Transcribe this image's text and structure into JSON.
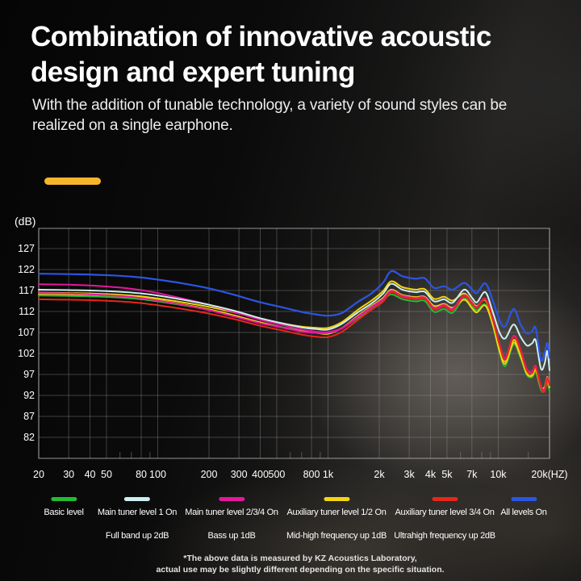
{
  "header": {
    "title_line1": "Combination of innovative acoustic",
    "title_line2": "design and expert tuning",
    "subtitle_line1": "With the addition of tunable technology, a variety of sound styles can be",
    "subtitle_line2": "realized on a single earphone.",
    "accent_color": "#f6b52c"
  },
  "footer": {
    "line1": "*The above data is measured by KZ Acoustics Laboratory,",
    "line2": "actual use may be slightly different depending on the specific situation."
  },
  "chart_data": {
    "type": "line",
    "x_scale": "log",
    "y_unit_label": "(dB)",
    "ylim": [
      77,
      131.8
    ],
    "xlim": [
      20,
      20000
    ],
    "grid": true,
    "y_ticks": [
      127,
      122,
      117,
      112,
      107,
      102,
      97,
      92,
      87,
      82
    ],
    "x_ticks": [
      {
        "f": 20,
        "label": "20"
      },
      {
        "f": 30,
        "label": "30"
      },
      {
        "f": 40,
        "label": "40"
      },
      {
        "f": 50,
        "label": "50"
      },
      {
        "f": 80,
        "label": "80"
      },
      {
        "f": 100,
        "label": "100"
      },
      {
        "f": 200,
        "label": "200"
      },
      {
        "f": 300,
        "label": "300"
      },
      {
        "f": 400,
        "label": "400"
      },
      {
        "f": 500,
        "label": "500"
      },
      {
        "f": 800,
        "label": "800"
      },
      {
        "f": 1000,
        "label": "1k"
      },
      {
        "f": 2000,
        "label": "2k"
      },
      {
        "f": 3000,
        "label": "3k"
      },
      {
        "f": 4000,
        "label": "4k"
      },
      {
        "f": 5000,
        "label": "5k"
      },
      {
        "f": 7000,
        "label": "7k"
      },
      {
        "f": 10000,
        "label": "10k"
      },
      {
        "f": 20000,
        "label": "20k(HZ)"
      }
    ],
    "minor_ticks": [
      60,
      70,
      90,
      600,
      700,
      900,
      6000,
      8000,
      9000,
      15000
    ],
    "frequencies": [
      20,
      30,
      40,
      60,
      80,
      100,
      140,
      200,
      280,
      400,
      550,
      700,
      850,
      1000,
      1200,
      1500,
      1800,
      2100,
      2350,
      2700,
      3000,
      3300,
      3700,
      4200,
      4800,
      5400,
      6300,
      7000,
      7500,
      8400,
      9300,
      10200,
      11000,
      12300,
      13500,
      14700,
      15800,
      16600,
      17800,
      18700,
      19400,
      20000
    ],
    "series": [
      {
        "name": "Basic level",
        "sub": "",
        "color": "#23bb33",
        "lines": [
          [
            115.8,
            115.7,
            115.6,
            115.3,
            114.9,
            114.4,
            113.5,
            112.4,
            111.0,
            109.4,
            108.2,
            107.5,
            107.1,
            107.0,
            108.0,
            110.5,
            112.9,
            114.7,
            116.1,
            115.0,
            114.6,
            114.4,
            114.5,
            111.9,
            112.6,
            111.7,
            115.1,
            113.3,
            112.3,
            113.6,
            108.6,
            102.1,
            99.0,
            104.1,
            101.0,
            96.9,
            96.3,
            97.7,
            93.4,
            93.0,
            95.0,
            93.0
          ]
        ]
      },
      {
        "name": "Main tuner level 1 On",
        "sub": "Full band up 2dB",
        "color": "#cdeef2",
        "lines": [
          [
            117.2,
            117.1,
            117.0,
            116.7,
            116.3,
            115.8,
            114.8,
            113.6,
            112.2,
            110.4,
            109.1,
            108.2,
            107.8,
            107.7,
            109.0,
            111.8,
            113.9,
            116.2,
            118.6,
            117.3,
            116.8,
            116.6,
            116.7,
            114.4,
            114.9,
            114.1,
            117.2,
            115.3,
            114.2,
            116.6,
            111.8,
            106.9,
            105.6,
            108.9,
            106.0,
            103.9,
            104.4,
            105.1,
            98.4,
            99.5,
            102.6,
            98.0
          ]
        ]
      },
      {
        "name": "Main tuner level 2/3/4 On",
        "sub": "Bass up 1dB",
        "color": "#e3189b",
        "lines": [
          [
            118.5,
            118.4,
            118.2,
            117.7,
            117.1,
            116.4,
            115.1,
            113.6,
            111.9,
            110.0,
            108.7,
            107.7,
            107.2,
            107.1,
            108.0,
            110.8,
            113.1,
            114.9,
            116.9,
            115.8,
            115.4,
            115.2,
            115.3,
            112.9,
            113.6,
            112.7,
            115.9,
            114.1,
            113.1,
            115.1,
            110.2,
            104.1,
            100.9,
            106.2,
            103.0,
            98.3,
            97.7,
            99.0,
            94.2,
            93.5,
            96.2,
            94.6
          ],
          [
            116.4,
            116.3,
            116.1,
            115.7,
            115.2,
            114.6,
            113.6,
            112.3,
            110.8,
            109.2,
            108.1,
            107.2,
            106.9,
            106.9,
            107.9,
            110.7,
            113.0,
            114.8,
            116.8,
            115.7,
            115.3,
            115.1,
            115.2,
            112.8,
            113.5,
            112.6,
            115.8,
            114.0,
            113.0,
            115.0,
            110.1,
            104.0,
            100.8,
            106.1,
            102.9,
            98.2,
            97.6,
            98.9,
            94.1,
            93.4,
            96.1,
            94.5
          ]
        ]
      },
      {
        "name": "Auxiliary tuner level 1/2 On",
        "sub": "Mid-high frequency up 1dB",
        "color": "#f2d511",
        "lines": [
          [
            116.5,
            116.4,
            116.3,
            116.0,
            115.6,
            115.1,
            114.2,
            113.1,
            111.8,
            110.3,
            109.1,
            108.4,
            108.1,
            108.1,
            109.4,
            112.4,
            114.6,
            116.8,
            119.2,
            117.9,
            117.4,
            117.2,
            117.3,
            115.0,
            115.5,
            114.6,
            116.3,
            114.3,
            113.3,
            114.7,
            109.8,
            103.2,
            100.2,
            105.2,
            102.0,
            97.8,
            97.2,
            98.6,
            94.2,
            93.9,
            96.4,
            94.4
          ],
          [
            116.2,
            116.1,
            116.0,
            115.7,
            115.3,
            114.7,
            113.7,
            112.5,
            111.1,
            109.4,
            108.1,
            107.3,
            106.9,
            106.7,
            108.0,
            111.0,
            113.3,
            115.2,
            117.2,
            116.0,
            115.6,
            115.4,
            115.5,
            113.3,
            113.8,
            112.9,
            114.8,
            112.8,
            111.8,
            113.4,
            108.8,
            102.4,
            99.6,
            104.6,
            101.4,
            97.2,
            96.7,
            98.1,
            93.8,
            93.5,
            95.9,
            93.9
          ]
        ]
      },
      {
        "name": "Auxiliary tuner level 3/4 On",
        "sub": "Ultrahigh frequency up 2dB",
        "color": "#e62619",
        "lines": [
          [
            114.9,
            114.8,
            114.7,
            114.4,
            114.0,
            113.5,
            112.6,
            111.5,
            110.2,
            108.6,
            107.4,
            106.5,
            106.0,
            105.9,
            107.1,
            110.0,
            112.4,
            114.3,
            116.6,
            115.5,
            115.1,
            114.9,
            115.0,
            112.5,
            113.2,
            112.3,
            115.6,
            113.8,
            112.9,
            114.9,
            110.0,
            103.8,
            100.5,
            105.9,
            102.6,
            97.9,
            97.3,
            98.7,
            93.9,
            92.9,
            96.0,
            94.4
          ]
        ]
      },
      {
        "name": "All levels On",
        "sub": "",
        "color": "#2b55e4",
        "lines": [
          [
            121.0,
            120.9,
            120.8,
            120.5,
            120.1,
            119.6,
            118.7,
            117.5,
            116.0,
            114.2,
            112.9,
            111.9,
            111.3,
            111.0,
            111.6,
            114.3,
            116.3,
            118.8,
            121.6,
            120.5,
            120.0,
            119.8,
            119.9,
            117.6,
            118.0,
            117.2,
            118.8,
            117.3,
            116.4,
            118.7,
            114.5,
            109.8,
            108.5,
            112.6,
            108.9,
            106.8,
            107.3,
            108.0,
            100.5,
            102.0,
            104.5,
            101.0
          ]
        ]
      }
    ],
    "legend_position": "bottom"
  }
}
